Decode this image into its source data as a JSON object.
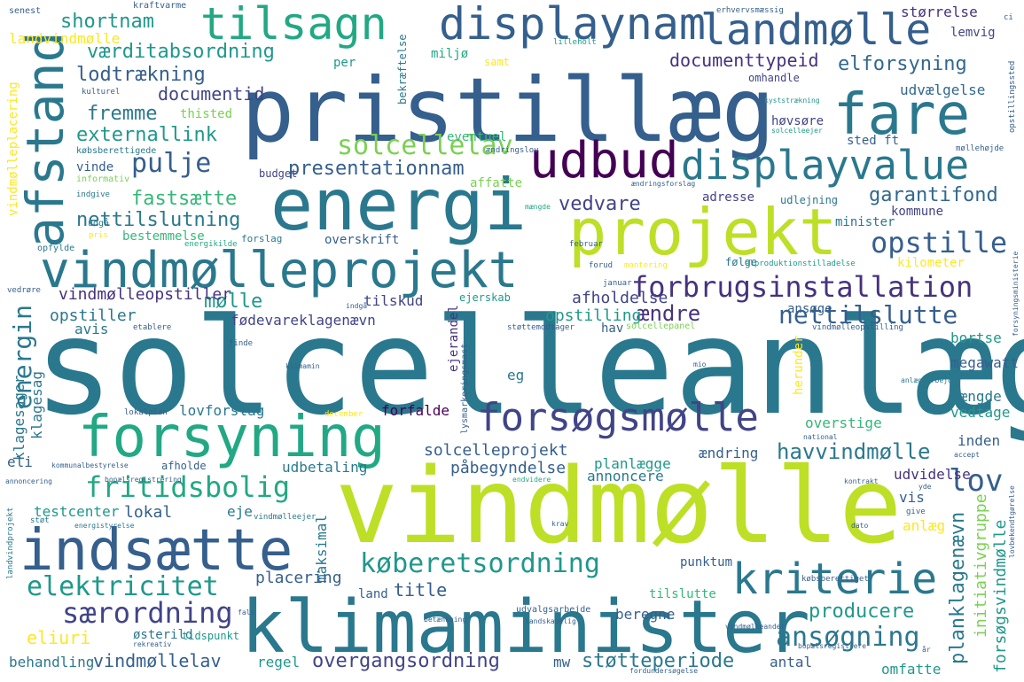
{
  "words": [
    "solcelleanlæg",
    "vindmølle",
    "klimaminister",
    "pristillæg",
    "energi",
    "projekt",
    "forsyning",
    "vindmølleprojekt",
    "indsætte",
    "udbud",
    "fare",
    "displayvalue",
    "displaynam",
    "tilsagn",
    "landmølle",
    "afstand",
    "forsøgsmølle",
    "kriterie",
    "forbrugsinstallation",
    "køberetsordning",
    "elektricitet",
    "fritidsbolig",
    "lov",
    "opstille",
    "særordning",
    "ansøgning",
    "solcellelav",
    "pulje",
    "nettilslutte",
    "energin",
    "værditabsordning",
    "shortnam",
    "lodtrækning",
    "fremme",
    "externallink",
    "fastsætte",
    "nettilslutning",
    "presentationnam",
    "documenttypeid",
    "elforsyning",
    "documentid",
    "garantifond",
    "vedvare",
    "mølle",
    "vindmølleopstiller",
    "tilskud",
    "afholdelse",
    "ændre",
    "opstiller",
    "fødevareklagenævn",
    "opstilling",
    "havvindmølle",
    "solcelleprojekt",
    "lovforslag",
    "forfalde",
    "påbegyndelse",
    "planlægge",
    "udbetaling",
    "udvidelse",
    "annoncere",
    "planklagenævn",
    "producere",
    "testcenter",
    "lokal",
    "eje",
    "maksimal",
    "punktum",
    "placering",
    "title",
    "tilslutte",
    "overgangsordning",
    "støtteperiode",
    "vindmøllelav",
    "behandling",
    "eliuri",
    "antal",
    "omfatte",
    "regel",
    "mw",
    "beregne",
    "land",
    "initiativgruppe",
    "forsøgsvindmølle",
    "megawatt",
    "længde",
    "vedtage",
    "inden",
    "bortse",
    "overstige",
    "herunder",
    "ændring",
    "vis",
    "anlæg",
    "klagesager",
    "klagesag",
    "landvindmølle",
    "vindmølleplacering",
    "størrelse",
    "lemvig",
    "miljø",
    "samt",
    "per",
    "udvælgelse",
    "høvsøre",
    "thisted",
    "eventuel",
    "sted ft",
    "kommune",
    "adresse",
    "minister",
    "kilometer",
    "budget",
    "affatte",
    "vinde",
    "bestemmelse",
    "avis",
    "hav",
    "eg",
    "overskrift",
    "følge",
    "ansøge",
    "ejerandel",
    "lysmarkeringsmast",
    "ejerskab",
    "eli",
    "afholde",
    "østerild",
    "tidspunkt",
    "bekræftelse",
    "omhandle",
    "købsberettigede",
    "informativ",
    "kraftvarme",
    "senest",
    "erhvervsmæssig",
    "lilleholt",
    "ci",
    "opstillingssted",
    "kulturel",
    "kyststrækning",
    "solcelleejer",
    "møllehøjde",
    "mængde",
    "ændringslov",
    "ændringsforslag",
    "udlejning",
    "indgive",
    "udgå",
    "pris",
    "energikilde",
    "forslag",
    "opfylde",
    "februar",
    "forud",
    "montering",
    "elproduktionstilladelse",
    "januar",
    "vedrøre",
    "indgå",
    "etablere",
    "støttemodtager",
    "solcellepanel",
    "vindmølleopstilling",
    "finde",
    "klimamin",
    "mio",
    "anlægsarbejder",
    "lokalplan",
    "december",
    "national",
    "accept",
    "kommunalbestyrelse",
    "bopælsregistrering",
    "endvidere",
    "kontrakt",
    "yde",
    "annoncering",
    "vindmølleejer",
    "dato",
    "give",
    "lovbekendtgørelse",
    "landvindprojekt",
    "støt",
    "energistyrelse",
    "krav",
    "købsberettiget",
    "betænkning",
    "udvalgsarbejde",
    "landskabelig",
    "vindmølleandel",
    "fals",
    "rekreativ",
    "bopælsregistrere",
    "år",
    "fordundersøgelse",
    "forsyningsministerie"
  ]
}
